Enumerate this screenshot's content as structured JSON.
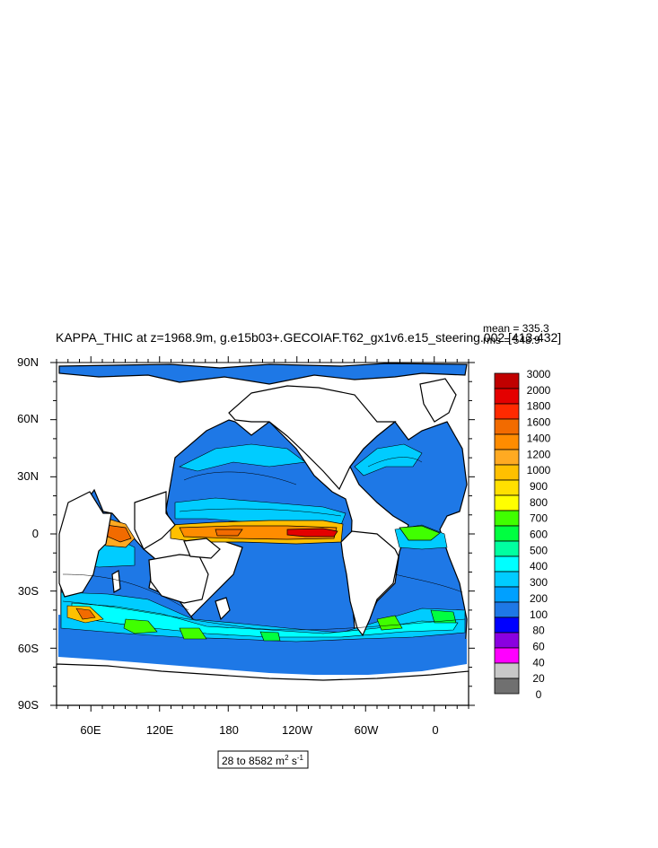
{
  "title": "KAPPA_THIC at z=1968.9m, g.e15b03+.GECOIAF.T62_gx1v6.e15_steering.002 [413-432]",
  "stats": {
    "mean": "mean = 335.3",
    "rms": "rms = 548.9"
  },
  "range": {
    "prefix": "28 to 8582 m",
    "sup1": "2",
    "mid": " s",
    "sup2": "-1"
  },
  "chart_data": {
    "type": "heatmap",
    "title": "KAPPA_THIC at z=1968.9m, g.e15b03+.GECOIAF.T62_gx1v6.e15_steering.002 [413-432]",
    "xlabel": "",
    "ylabel": "",
    "lat_ticks": [
      "90N",
      "60N",
      "30N",
      "0",
      "30S",
      "60S",
      "90S"
    ],
    "lon_ticks": [
      "60E",
      "120E",
      "180",
      "120W",
      "60W",
      "0"
    ],
    "value_range": [
      28,
      8582
    ],
    "units": "m2 s-1",
    "colorbar": {
      "labels": [
        "3000",
        "2000",
        "1800",
        "1600",
        "1400",
        "1200",
        "1000",
        "900",
        "800",
        "700",
        "600",
        "500",
        "400",
        "300",
        "200",
        "100",
        "80",
        "60",
        "40",
        "20",
        "0"
      ],
      "colors": [
        "#c00000",
        "#e40000",
        "#ff2a00",
        "#f26b00",
        "#ff8c00",
        "#ffaa22",
        "#ffc000",
        "#ffe000",
        "#ffff00",
        "#40ff00",
        "#00ff40",
        "#00ffa0",
        "#00ffff",
        "#00ccff",
        "#00a0ff",
        "#1e78e6",
        "#0000ff",
        "#8a00e0",
        "#ff00ff",
        "#c8c8c8",
        "#707070"
      ]
    }
  }
}
